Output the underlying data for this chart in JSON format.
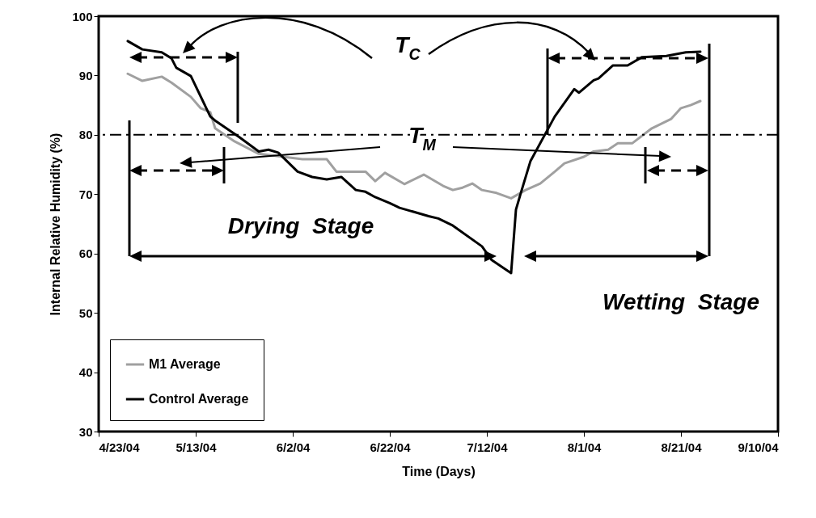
{
  "chart_data": {
    "type": "line",
    "xlabel": "Time (Days)",
    "ylabel": "Internal Relative Humidity (%)",
    "xlim": [
      "2004-04-23",
      "2004-09-10"
    ],
    "xticks": [
      {
        "value": "2004-04-23",
        "label": "4/23/04"
      },
      {
        "value": "2004-05-13",
        "label": "5/13/04"
      },
      {
        "value": "2004-06-02",
        "label": "6/2/04"
      },
      {
        "value": "2004-06-22",
        "label": "6/22/04"
      },
      {
        "value": "2004-07-12",
        "label": "7/12/04"
      },
      {
        "value": "2004-08-01",
        "label": "8/1/04"
      },
      {
        "value": "2004-08-21",
        "label": "8/21/04"
      },
      {
        "value": "2004-09-10",
        "label": "9/10/04"
      }
    ],
    "ylim": [
      30,
      100
    ],
    "yticks": [
      30,
      40,
      50,
      60,
      70,
      80,
      90,
      100
    ],
    "legend": "bottom left",
    "series": [
      {
        "name": "M1 Average",
        "color": "#a0a0a0",
        "x": [
          "2004-04-29",
          "2004-05-02",
          "2004-05-06",
          "2004-05-08",
          "2004-05-12",
          "2004-05-14",
          "2004-05-16",
          "2004-05-17",
          "2004-05-21",
          "2004-05-26",
          "2004-05-31",
          "2004-06-04",
          "2004-06-09",
          "2004-06-11",
          "2004-06-17",
          "2004-06-19",
          "2004-06-21",
          "2004-06-25",
          "2004-06-29",
          "2004-07-03",
          "2004-07-05",
          "2004-07-07",
          "2004-07-09",
          "2004-07-11",
          "2004-07-14",
          "2004-07-17",
          "2004-07-20",
          "2004-07-23",
          "2004-07-26",
          "2004-07-28",
          "2004-08-01",
          "2004-08-03",
          "2004-08-06",
          "2004-08-08",
          "2004-08-11",
          "2004-08-15",
          "2004-08-19",
          "2004-08-21",
          "2004-08-23",
          "2004-08-25"
        ],
        "values": [
          90.3,
          89.1,
          89.8,
          88.8,
          86.4,
          84.5,
          83.8,
          81.1,
          78.9,
          76.8,
          76.3,
          75.9,
          75.9,
          73.8,
          73.8,
          72.2,
          73.6,
          71.7,
          73.3,
          71.4,
          70.7,
          71.1,
          71.8,
          70.7,
          70.2,
          69.3,
          70.7,
          71.8,
          73.8,
          75.2,
          76.3,
          77.2,
          77.5,
          78.6,
          78.6,
          81.1,
          82.7,
          84.5,
          85.0,
          85.7
        ]
      },
      {
        "name": "Control Average",
        "color": "#000000",
        "x": [
          "2004-04-29",
          "2004-05-02",
          "2004-05-06",
          "2004-05-08",
          "2004-05-09",
          "2004-05-12",
          "2004-05-16",
          "2004-05-17",
          "2004-05-22",
          "2004-05-26",
          "2004-05-28",
          "2004-05-30",
          "2004-06-03",
          "2004-06-06",
          "2004-06-09",
          "2004-06-12",
          "2004-06-15",
          "2004-06-17",
          "2004-06-19",
          "2004-06-22",
          "2004-06-24",
          "2004-06-27",
          "2004-06-30",
          "2004-07-02",
          "2004-07-05",
          "2004-07-11",
          "2004-07-13",
          "2004-07-17",
          "2004-07-18",
          "2004-07-19",
          "2004-07-21",
          "2004-07-25",
          "2004-07-26",
          "2004-07-30",
          "2004-07-31",
          "2004-08-03",
          "2004-08-04",
          "2004-08-07",
          "2004-08-10",
          "2004-08-13",
          "2004-08-18",
          "2004-08-22",
          "2004-08-25"
        ],
        "values": [
          95.8,
          94.4,
          93.9,
          92.9,
          91.3,
          89.9,
          83.1,
          82.4,
          79.6,
          77.2,
          77.5,
          77.0,
          73.8,
          72.9,
          72.5,
          72.9,
          70.7,
          70.4,
          69.5,
          68.5,
          67.7,
          67.0,
          66.3,
          65.9,
          64.7,
          61.2,
          58.9,
          56.7,
          67.4,
          70.2,
          75.6,
          81.6,
          83.1,
          87.7,
          87.1,
          89.2,
          89.5,
          91.7,
          91.7,
          93.1,
          93.3,
          93.9,
          94.0
        ]
      }
    ],
    "ref_lines": [
      {
        "axis": "y",
        "value": 80,
        "color": "#000000",
        "line_style": "dashed"
      }
    ],
    "annotations": [
      "T$_{C}$",
      "T$_{M}$",
      "Drying  Stage",
      "Wetting  Stage"
    ]
  }
}
